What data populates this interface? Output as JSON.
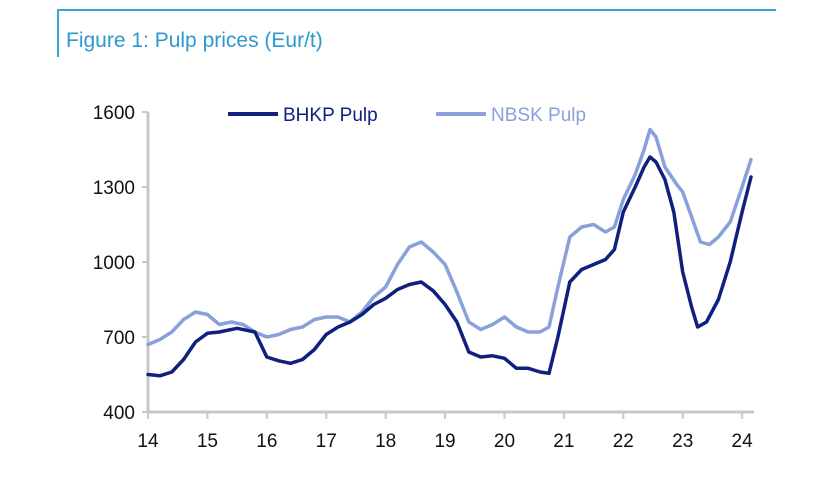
{
  "title": "Figure 1: Pulp prices (Eur/t)",
  "colors": {
    "title": "#2f97cf",
    "rule": "#3aa3d6",
    "axis": "#c8c8c8"
  },
  "chart_data": {
    "type": "line",
    "title": "Figure 1: Pulp prices (Eur/t)",
    "xlabel": "",
    "ylabel": "",
    "xlim": [
      14,
      24.2
    ],
    "ylim": [
      400,
      1600
    ],
    "yticks": [
      400,
      700,
      1000,
      1300,
      1600
    ],
    "xticks": [
      14,
      15,
      16,
      17,
      18,
      19,
      20,
      21,
      22,
      23,
      24
    ],
    "grid": false,
    "legend": "top",
    "series": [
      {
        "name": "BHKP Pulp",
        "color": "#10207e",
        "points": [
          [
            14,
            550
          ],
          [
            14.2,
            545
          ],
          [
            14.4,
            560
          ],
          [
            14.6,
            610
          ],
          [
            14.8,
            680
          ],
          [
            15,
            715
          ],
          [
            15.2,
            720
          ],
          [
            15.5,
            735
          ],
          [
            15.8,
            720
          ],
          [
            16,
            620
          ],
          [
            16.2,
            605
          ],
          [
            16.4,
            595
          ],
          [
            16.6,
            610
          ],
          [
            16.8,
            650
          ],
          [
            17,
            710
          ],
          [
            17.2,
            740
          ],
          [
            17.4,
            760
          ],
          [
            17.6,
            790
          ],
          [
            17.8,
            830
          ],
          [
            18,
            855
          ],
          [
            18.2,
            890
          ],
          [
            18.4,
            910
          ],
          [
            18.6,
            920
          ],
          [
            18.8,
            885
          ],
          [
            19,
            830
          ],
          [
            19.2,
            760
          ],
          [
            19.4,
            640
          ],
          [
            19.6,
            620
          ],
          [
            19.8,
            625
          ],
          [
            20,
            615
          ],
          [
            20.2,
            575
          ],
          [
            20.4,
            575
          ],
          [
            20.6,
            560
          ],
          [
            20.75,
            555
          ],
          [
            20.9,
            700
          ],
          [
            21.1,
            920
          ],
          [
            21.3,
            970
          ],
          [
            21.5,
            990
          ],
          [
            21.7,
            1010
          ],
          [
            21.85,
            1050
          ],
          [
            22,
            1200
          ],
          [
            22.2,
            1300
          ],
          [
            22.35,
            1380
          ],
          [
            22.45,
            1420
          ],
          [
            22.55,
            1400
          ],
          [
            22.7,
            1330
          ],
          [
            22.85,
            1200
          ],
          [
            23,
            960
          ],
          [
            23.15,
            820
          ],
          [
            23.25,
            740
          ],
          [
            23.4,
            760
          ],
          [
            23.6,
            850
          ],
          [
            23.8,
            1000
          ],
          [
            24,
            1200
          ],
          [
            24.15,
            1340
          ]
        ]
      },
      {
        "name": "NBSK Pulp",
        "color": "#8aa0dc",
        "points": [
          [
            14,
            670
          ],
          [
            14.2,
            690
          ],
          [
            14.4,
            720
          ],
          [
            14.6,
            770
          ],
          [
            14.8,
            800
          ],
          [
            15,
            790
          ],
          [
            15.2,
            750
          ],
          [
            15.4,
            760
          ],
          [
            15.6,
            750
          ],
          [
            15.8,
            720
          ],
          [
            16,
            700
          ],
          [
            16.2,
            710
          ],
          [
            16.4,
            730
          ],
          [
            16.6,
            740
          ],
          [
            16.8,
            770
          ],
          [
            17,
            780
          ],
          [
            17.2,
            780
          ],
          [
            17.4,
            760
          ],
          [
            17.6,
            800
          ],
          [
            17.8,
            860
          ],
          [
            18,
            900
          ],
          [
            18.2,
            990
          ],
          [
            18.4,
            1060
          ],
          [
            18.6,
            1080
          ],
          [
            18.8,
            1040
          ],
          [
            19,
            990
          ],
          [
            19.2,
            880
          ],
          [
            19.4,
            760
          ],
          [
            19.6,
            730
          ],
          [
            19.8,
            750
          ],
          [
            20,
            780
          ],
          [
            20.2,
            740
          ],
          [
            20.4,
            720
          ],
          [
            20.6,
            720
          ],
          [
            20.75,
            740
          ],
          [
            20.9,
            900
          ],
          [
            21.1,
            1100
          ],
          [
            21.3,
            1140
          ],
          [
            21.5,
            1150
          ],
          [
            21.7,
            1120
          ],
          [
            21.85,
            1140
          ],
          [
            22,
            1250
          ],
          [
            22.2,
            1350
          ],
          [
            22.35,
            1450
          ],
          [
            22.45,
            1530
          ],
          [
            22.55,
            1500
          ],
          [
            22.7,
            1380
          ],
          [
            22.9,
            1310
          ],
          [
            23,
            1280
          ],
          [
            23.15,
            1180
          ],
          [
            23.3,
            1080
          ],
          [
            23.45,
            1070
          ],
          [
            23.6,
            1100
          ],
          [
            23.8,
            1160
          ],
          [
            24,
            1300
          ],
          [
            24.15,
            1410
          ]
        ]
      }
    ]
  }
}
